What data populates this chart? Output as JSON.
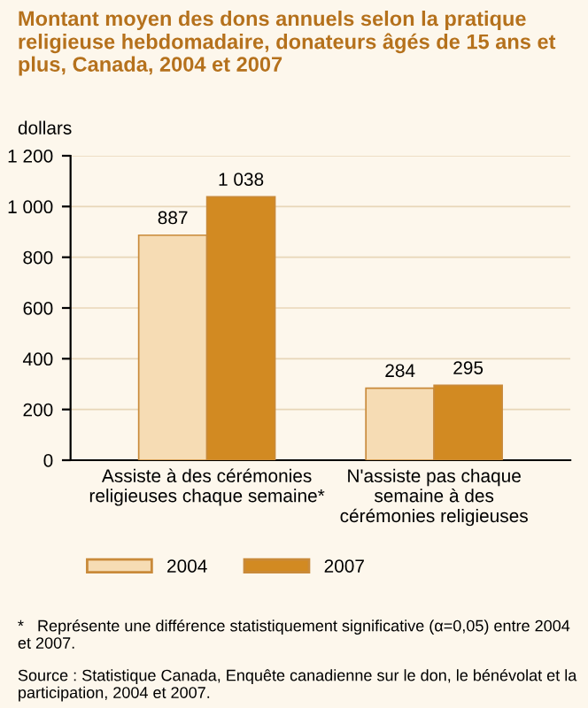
{
  "chart_data": {
    "type": "bar",
    "title": "Montant moyen des dons annuels selon la pratique religieuse hebdomadaire, donateurs âgés de 15 ans et plus, Canada, 2004 et 2007",
    "ylabel": "dollars",
    "categories": [
      "Assiste à des cérémonies\nreligieuses chaque semaine*",
      "N'assiste pas chaque\nsemaine à des\ncérémonies religieuses"
    ],
    "series": [
      {
        "name": "2004",
        "color": "#f6dcb4",
        "values": [
          887,
          284
        ],
        "value_labels": [
          "887",
          "284"
        ]
      },
      {
        "name": "2007",
        "color": "#d28a22",
        "values": [
          1038,
          295
        ],
        "value_labels": [
          "1 038",
          "295"
        ]
      }
    ],
    "ylim": [
      0,
      1200
    ],
    "yticks": [
      0,
      {
        "value": 200,
        "label": "200"
      },
      {
        "value": 400,
        "label": "400"
      },
      {
        "value": 600,
        "label": "600"
      },
      {
        "value": 800,
        "label": "800"
      },
      {
        "value": 1000,
        "label": "1 000"
      },
      {
        "value": 1200,
        "label": "1 200"
      }
    ],
    "grid": "y",
    "legend": "bottom",
    "annotations": [
      "*   Représente une différence statistiquement significative (α=0,05) entre 2004 et 2007.",
      "Source : Statistique Canada, Enquête canadienne sur le don, le bénévolat et la participation, 2004 et 2007."
    ]
  }
}
